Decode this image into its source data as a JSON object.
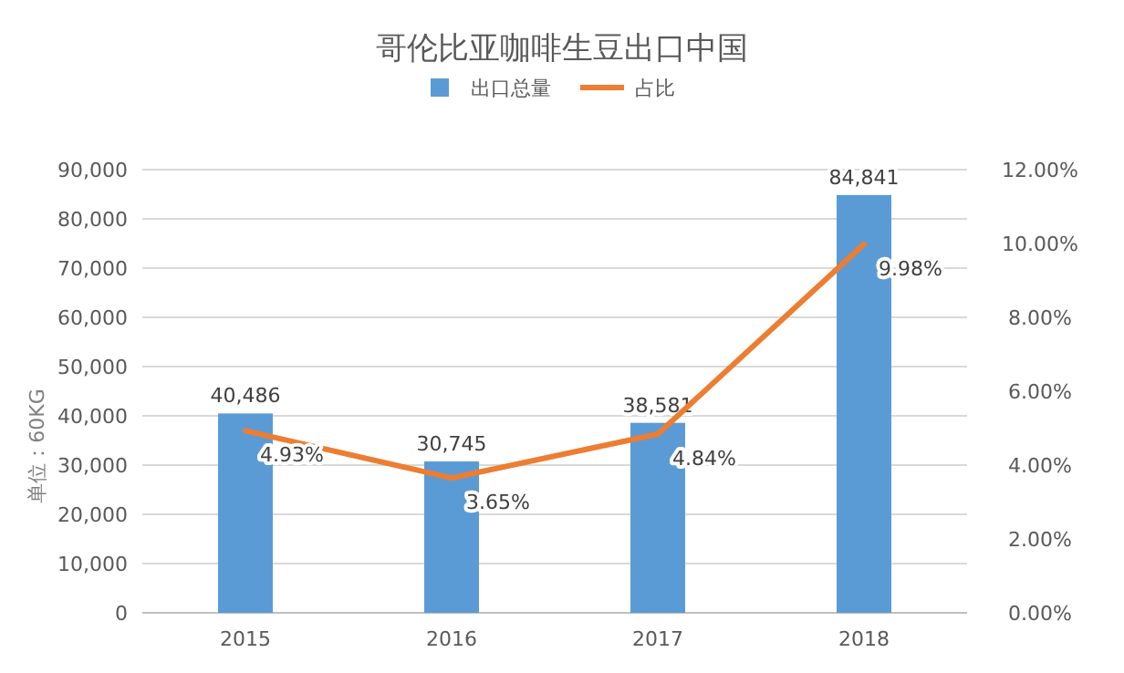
{
  "chart_data": {
    "type": "bar",
    "title": "哥伦比亚咖啡生豆出口中国",
    "ylabel": "单位：60KG",
    "categories": [
      "2015",
      "2016",
      "2017",
      "2018"
    ],
    "series": [
      {
        "name": "出口总量",
        "color": "#5b9bd5",
        "values": [
          40486,
          30745,
          38581,
          84841
        ],
        "value_labels": [
          "40,486",
          "30,745",
          "38,581",
          "84,841"
        ]
      },
      {
        "name": "占比",
        "type": "line",
        "axis": "y2",
        "color": "#ed7d31",
        "values": [
          4.93,
          3.65,
          4.84,
          9.98
        ],
        "value_labels": [
          "4.93%",
          "3.65%",
          "4.84%",
          "9.98%"
        ]
      }
    ],
    "ylim": [
      0,
      90000
    ],
    "yticks": [
      {
        "value": 0,
        "label": "0"
      },
      {
        "value": 10000,
        "label": "10,000"
      },
      {
        "value": 20000,
        "label": "20,000"
      },
      {
        "value": 30000,
        "label": "30,000"
      },
      {
        "value": 40000,
        "label": "40,000"
      },
      {
        "value": 50000,
        "label": "50,000"
      },
      {
        "value": 60000,
        "label": "60,000"
      },
      {
        "value": 70000,
        "label": "70,000"
      },
      {
        "value": 80000,
        "label": "80,000"
      },
      {
        "value": 90000,
        "label": "90,000"
      }
    ],
    "y2lim": [
      0,
      12
    ],
    "y2ticks": [
      {
        "value": 0,
        "label": "0.00%"
      },
      {
        "value": 2,
        "label": "2.00%"
      },
      {
        "value": 4,
        "label": "4.00%"
      },
      {
        "value": 6,
        "label": "6.00%"
      },
      {
        "value": 8,
        "label": "8.00%"
      },
      {
        "value": 10,
        "label": "10.00%"
      },
      {
        "value": 12,
        "label": "12.00%"
      }
    ],
    "grid": "y",
    "legend": "top",
    "marker": "none",
    "line_style": "solid"
  }
}
